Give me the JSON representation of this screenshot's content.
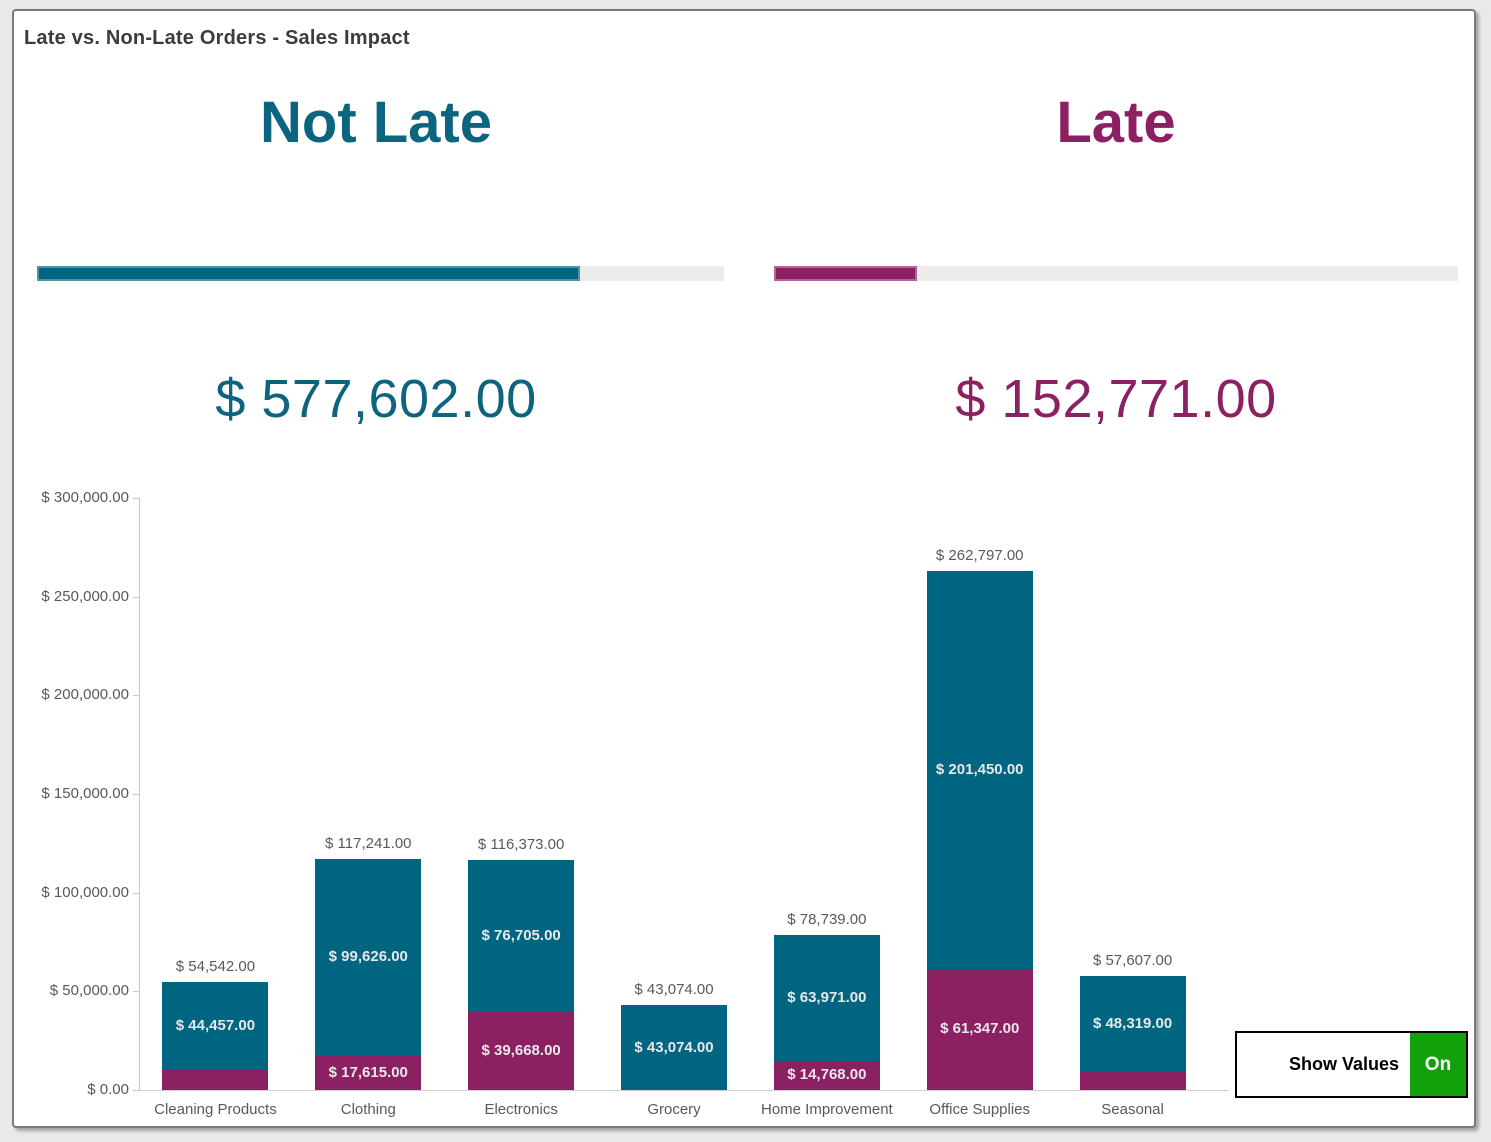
{
  "window": {
    "title": "Late vs. Non-Late Orders - Sales Impact"
  },
  "kpis": [
    {
      "id": "not_late",
      "label": "Not Late",
      "value": 577602,
      "value_text": "$ 577,602.00",
      "text_color": "#0d647f",
      "bar_color": "#006580"
    },
    {
      "id": "late",
      "label": "Late",
      "value": 152771,
      "value_text": "$ 152,771.00",
      "text_color": "#8d2063",
      "bar_color": "#8b2162"
    }
  ],
  "progress": {
    "track_color": "#ececec"
  },
  "chart_data": {
    "type": "bar",
    "stacked": true,
    "title": "",
    "xlabel": "",
    "ylabel": "",
    "categories": [
      "Cleaning Products",
      "Clothing",
      "Electronics",
      "Grocery",
      "Home Improvement",
      "Office Supplies",
      "Seasonal"
    ],
    "series": [
      {
        "name": "Late",
        "color": "#8b2162",
        "values": [
          10085,
          17615,
          39668,
          0,
          14768,
          61347,
          9288
        ]
      },
      {
        "name": "Not Late",
        "color": "#006580",
        "values": [
          44457,
          99626,
          76705,
          43074,
          63971,
          201450,
          48319
        ]
      }
    ],
    "totals": [
      54542,
      117241,
      116373,
      43074,
      78739,
      262797,
      57607
    ],
    "segment_labels_visible": [
      {
        "late": false,
        "not_late": true
      },
      {
        "late": true,
        "not_late": true
      },
      {
        "late": true,
        "not_late": true
      },
      {
        "late": false,
        "not_late": true
      },
      {
        "late": true,
        "not_late": true
      },
      {
        "late": true,
        "not_late": true
      },
      {
        "late": false,
        "not_late": true
      }
    ],
    "ylim": [
      0,
      300000
    ],
    "ytick_step": 50000,
    "ytick_labels": [
      "$ 0.00",
      "$ 50,000.00",
      "$ 100,000.00",
      "$ 150,000.00",
      "$ 200,000.00",
      "$ 250,000.00",
      "$ 300,000.00"
    ],
    "value_format": "$ #,##0.00",
    "grid": false,
    "legend": "none"
  },
  "toggle": {
    "label": "Show Values",
    "state": "On",
    "state_color": "#12a10b"
  }
}
